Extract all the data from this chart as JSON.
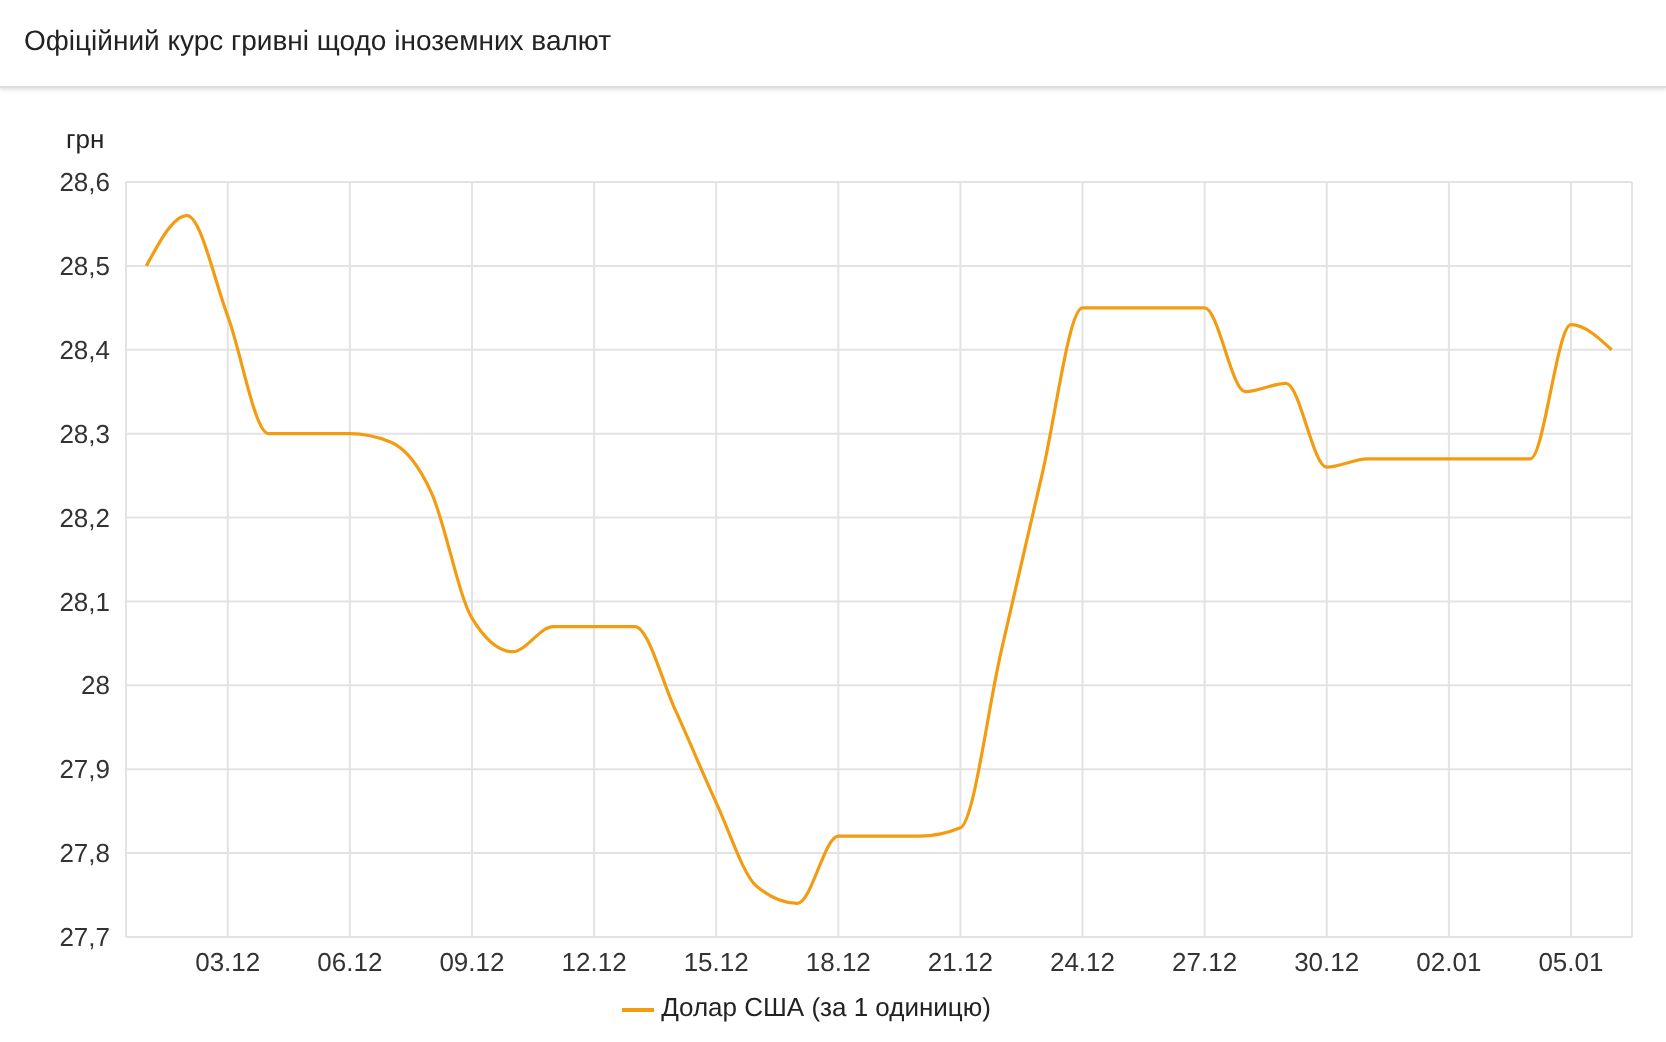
{
  "chart_data": {
    "type": "line",
    "title": "Офіційний курс гривні щодо іноземних валют",
    "ylabel": "грн",
    "categories": [
      null,
      null,
      "03.12",
      null,
      null,
      "06.12",
      null,
      null,
      "09.12",
      null,
      null,
      "12.12",
      null,
      null,
      "15.12",
      null,
      null,
      "18.12",
      null,
      null,
      "21.12",
      null,
      null,
      "24.12",
      null,
      null,
      "27.12",
      null,
      null,
      "30.12",
      null,
      null,
      "02.01",
      null,
      null,
      "05.01",
      null
    ],
    "series": [
      {
        "name": "Долар США (за 1 одиницю)",
        "color": "#f39c12",
        "values": [
          28.5,
          28.56,
          28.44,
          28.3,
          28.3,
          28.3,
          28.29,
          28.23,
          28.08,
          28.04,
          28.07,
          28.07,
          28.07,
          27.97,
          27.86,
          27.76,
          27.74,
          27.82,
          27.82,
          27.82,
          27.83,
          28.04,
          28.25,
          28.45,
          28.45,
          28.45,
          28.45,
          28.35,
          28.36,
          28.26,
          28.27,
          28.27,
          28.27,
          28.27,
          28.27,
          28.43,
          28.4
        ]
      }
    ],
    "ylim": [
      27.7,
      28.6
    ],
    "yticks": [
      {
        "value": 27.7,
        "label": "27,7"
      },
      {
        "value": 27.8,
        "label": "27,8"
      },
      {
        "value": 27.9,
        "label": "27,9"
      },
      28,
      {
        "value": 28.1,
        "label": "28,1"
      },
      {
        "value": 28.2,
        "label": "28,2"
      },
      {
        "value": 28.3,
        "label": "28,3"
      },
      {
        "value": 28.4,
        "label": "28,4"
      },
      {
        "value": 28.5,
        "label": "28,5"
      },
      {
        "value": 28.6,
        "label": "28,6"
      }
    ],
    "grid": true,
    "legend": "bottom",
    "marker": "none",
    "line_style": "solid"
  }
}
